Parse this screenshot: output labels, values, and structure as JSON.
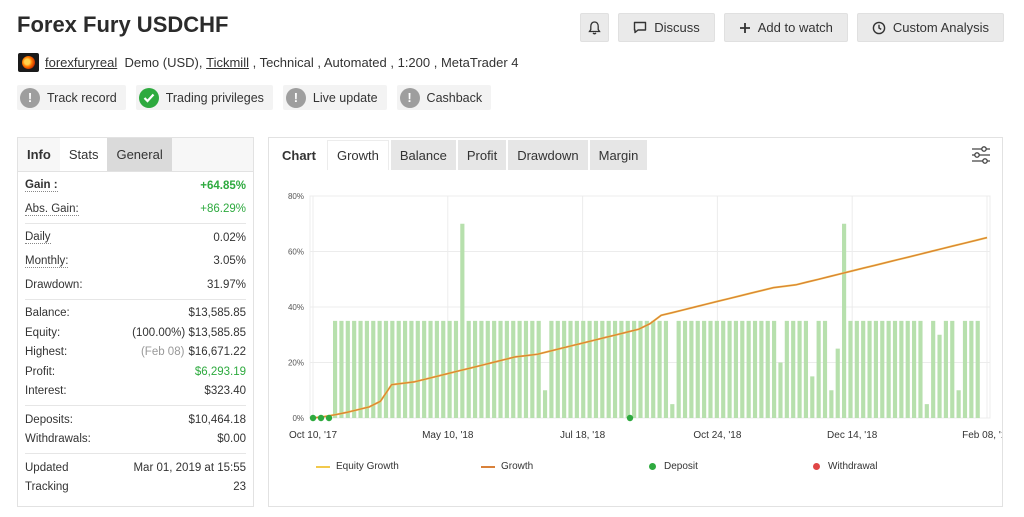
{
  "page": {
    "title": "Forex Fury USDCHF"
  },
  "actions": {
    "discuss": "Discuss",
    "add_to_watch": "Add to watch",
    "custom_analysis": "Custom Analysis"
  },
  "meta": {
    "username": "forexfuryreal",
    "account_type": "Demo (USD),",
    "broker": "Tickmill",
    "details": " , Technical , Automated , 1:200 , MetaTrader 4"
  },
  "badges": [
    {
      "label": "Track record",
      "status": "unknown"
    },
    {
      "label": "Trading privileges",
      "status": "ok"
    },
    {
      "label": "Live update",
      "status": "unknown"
    },
    {
      "label": "Cashback",
      "status": "unknown"
    }
  ],
  "stats_tabs": [
    "Info",
    "Stats",
    "General"
  ],
  "stats": {
    "gain_label": "Gain :",
    "gain": "+64.85%",
    "abs_gain_label": "Abs. Gain:",
    "abs_gain": "+86.29%",
    "daily_label": "Daily",
    "daily": "0.02%",
    "monthly_label": "Monthly:",
    "monthly": "3.05%",
    "drawdown_label": "Drawdown:",
    "drawdown": "31.97%",
    "balance_label": "Balance:",
    "balance": "$13,585.85",
    "equity_label": "Equity:",
    "equity_pct": "(100.00%)",
    "equity": "$13,585.85",
    "highest_label": "Highest:",
    "highest_date": "(Feb 08)",
    "highest": "$16,671.22",
    "profit_label": "Profit:",
    "profit": "$6,293.19",
    "interest_label": "Interest:",
    "interest": "$323.40",
    "deposits_label": "Deposits:",
    "deposits": "$10,464.18",
    "withdrawals_label": "Withdrawals:",
    "withdrawals": "$0.00",
    "updated_label": "Updated",
    "updated": "Mar 01, 2019 at 15:55",
    "tracking_label": "Tracking",
    "tracking": "23"
  },
  "chart_tabs": [
    "Chart",
    "Growth",
    "Balance",
    "Profit",
    "Drawdown",
    "Margin"
  ],
  "chart_data": {
    "type": "line",
    "x_ticks": [
      "Oct 10, '17",
      "May 10, '18",
      "Jul 18, '18",
      "Oct 24, '18",
      "Dec 14, '18",
      "Feb 08, '19"
    ],
    "y_ticks": [
      "0%",
      "20%",
      "40%",
      "60%",
      "80%"
    ],
    "ylim": [
      0,
      80
    ],
    "grid": true,
    "legend_position": "bottom",
    "series": [
      {
        "name": "Equity Growth",
        "color": "#f2c94c",
        "values": [
          0,
          0.5,
          1.2,
          2,
          3,
          4,
          6,
          12,
          12.5,
          13,
          14,
          15,
          16,
          17,
          18,
          19,
          20,
          21,
          22,
          22.5,
          23,
          24,
          25,
          26,
          27,
          28,
          29,
          30,
          31,
          32,
          34,
          37,
          38,
          39,
          40,
          41,
          42,
          43,
          44,
          45,
          46,
          47,
          47.5,
          48,
          49,
          50,
          51,
          52,
          53,
          54,
          55,
          56,
          57,
          58,
          59,
          60,
          61,
          62,
          63,
          64,
          65
        ]
      },
      {
        "name": "Growth",
        "color": "#d9813a",
        "values": [
          0,
          0.5,
          1.2,
          2,
          3,
          4,
          6,
          12,
          12.5,
          13,
          14,
          15,
          16,
          17,
          18,
          19,
          20,
          21,
          22,
          22.5,
          23,
          24,
          25,
          26,
          27,
          28,
          29,
          30,
          31,
          32,
          34,
          37,
          38,
          39,
          40,
          41,
          42,
          43,
          44,
          45,
          46,
          47,
          47.5,
          48,
          49,
          50,
          51,
          52,
          53,
          54,
          55,
          56,
          57,
          58,
          59,
          60,
          61,
          62,
          63,
          64,
          65
        ]
      }
    ],
    "bar_series": {
      "name": "Growth",
      "color": "#b7e0ad",
      "values": [
        35,
        35,
        35,
        35,
        35,
        35,
        35,
        35,
        35,
        35,
        35,
        35,
        35,
        35,
        35,
        35,
        35,
        35,
        35,
        35,
        70,
        35,
        35,
        35,
        35,
        35,
        35,
        35,
        35,
        35,
        35,
        35,
        35,
        10,
        35,
        35,
        35,
        35,
        35,
        35,
        35,
        35,
        35,
        35,
        35,
        35,
        35,
        35,
        35,
        35,
        35,
        35,
        35,
        5,
        35,
        35,
        35,
        35,
        35,
        35,
        35,
        35,
        35,
        35,
        35,
        35,
        35,
        35,
        35,
        35,
        20,
        35,
        35,
        35,
        35,
        15,
        35,
        35,
        10,
        25,
        70,
        35,
        35,
        35,
        35,
        35,
        35,
        35,
        35,
        35,
        35,
        35,
        35,
        5,
        35,
        30,
        35,
        35,
        10,
        35,
        35,
        35
      ]
    },
    "deposits_markers": [
      "Oct 10, '17",
      "Oct 10, '17",
      "Oct 10, '17",
      "Jul 18, '18"
    ],
    "legend": [
      {
        "label": "Equity Growth",
        "color": "#f2c94c",
        "kind": "line"
      },
      {
        "label": "Growth",
        "color": "#d9813a",
        "kind": "line"
      },
      {
        "label": "Deposit",
        "color": "#2eaa3f",
        "kind": "dot"
      },
      {
        "label": "Withdrawal",
        "color": "#e04646",
        "kind": "dot"
      }
    ]
  }
}
